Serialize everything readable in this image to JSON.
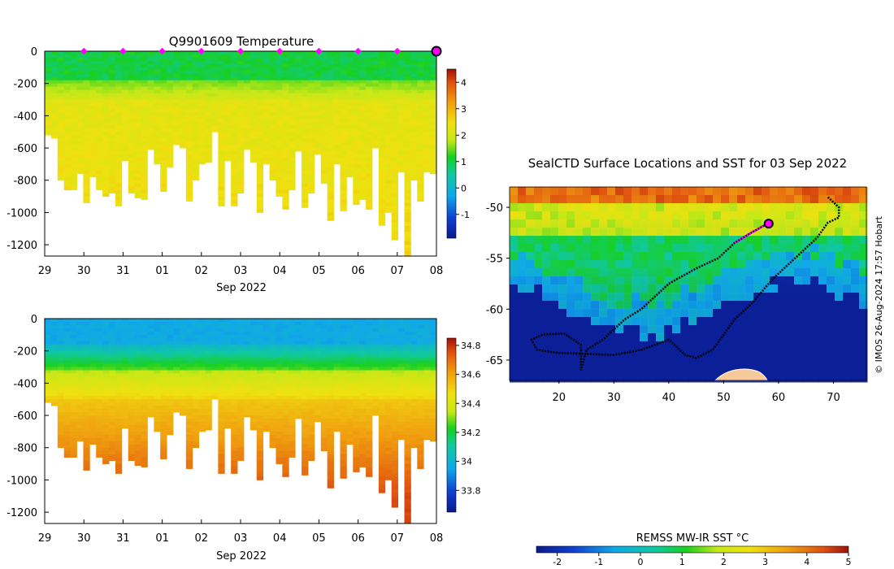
{
  "top_title": "Q9901609  Temperature",
  "map_title": "SealCTD Surface Locations and SST for 03 Sep 2022",
  "copyright": "© IMOS 26-Aug-2024 17:57 Hobart",
  "colors": {
    "profile_marker": "#ff00ff",
    "track": "#000000",
    "land": "#f7c99a",
    "ocean_cold": "#0a1fa0"
  },
  "chart_data": [
    {
      "id": "temperature",
      "type": "heatmap",
      "title": "Q9901609  Temperature",
      "xlabel": "Sep 2022",
      "x_ticks": [
        "29",
        "30",
        "31",
        "01",
        "02",
        "03",
        "04",
        "05",
        "06",
        "07",
        "08"
      ],
      "y_ticks": [
        "0",
        "-200",
        "-400",
        "-600",
        "-800",
        "-1000",
        "-1200"
      ],
      "ylim": [
        -1270,
        0
      ],
      "xlim": [
        0,
        10
      ],
      "colorbar": {
        "ticks": [
          "4",
          "3",
          "2",
          "1",
          "0",
          "-1"
        ],
        "range": [
          -1.9,
          4.5
        ]
      },
      "profile_markers_x": [
        1,
        2,
        3,
        4,
        5,
        6,
        7,
        8,
        9,
        10
      ],
      "profile_max_depths": [
        520,
        540,
        800,
        860,
        860,
        760,
        940,
        780,
        860,
        900,
        880,
        960,
        680,
        880,
        910,
        920,
        610,
        700,
        870,
        720,
        580,
        600,
        930,
        800,
        700,
        690,
        500,
        960,
        680,
        960,
        880,
        610,
        690,
        1000,
        700,
        800,
        900,
        980,
        860,
        620,
        970,
        880,
        640,
        820,
        1050,
        700,
        990,
        780,
        950,
        920,
        980,
        600,
        1080,
        1000,
        1170,
        750,
        1270,
        800,
        930,
        750,
        760
      ]
    },
    {
      "id": "salinity",
      "type": "heatmap",
      "xlabel": "Sep 2022",
      "x_ticks": [
        "29",
        "30",
        "31",
        "01",
        "02",
        "03",
        "04",
        "05",
        "06",
        "07",
        "08"
      ],
      "y_ticks": [
        "0",
        "-200",
        "-400",
        "-600",
        "-800",
        "-1000",
        "-1200"
      ],
      "ylim": [
        -1270,
        0
      ],
      "xlim": [
        0,
        10
      ],
      "colorbar": {
        "ticks": [
          "34.8",
          "34.6",
          "34.4",
          "34.2",
          "34",
          "33.8"
        ],
        "range": [
          33.65,
          34.85
        ]
      }
    },
    {
      "id": "sst_map",
      "type": "heatmap",
      "title": "SealCTD Surface Locations and SST for 03 Sep 2022",
      "x_ticks": [
        "20",
        "30",
        "40",
        "50",
        "60",
        "70"
      ],
      "y_ticks": [
        "-50",
        "-55",
        "-60",
        "-65"
      ],
      "xlim": [
        11,
        76
      ],
      "ylim": [
        -67,
        -48
      ],
      "colorbar": {
        "title": "REMSS MW-IR SST °C",
        "ticks": [
          "-2",
          "-1",
          "0",
          "1",
          "2",
          "3",
          "4",
          "5"
        ],
        "range": [
          -2.5,
          5
        ]
      },
      "track_lonlat": [
        [
          69,
          -49
        ],
        [
          71,
          -50
        ],
        [
          71,
          -51
        ],
        [
          69,
          -51.5
        ],
        [
          67,
          -53
        ],
        [
          63,
          -55
        ],
        [
          59,
          -57
        ],
        [
          55,
          -59.5
        ],
        [
          52,
          -61
        ],
        [
          48,
          -64
        ],
        [
          45,
          -64.8
        ],
        [
          43,
          -64.5
        ],
        [
          40,
          -63
        ],
        [
          35,
          -64
        ],
        [
          30,
          -64.5
        ],
        [
          25,
          -64.4
        ],
        [
          20,
          -64.3
        ],
        [
          16,
          -64
        ],
        [
          15,
          -63
        ],
        [
          17,
          -62.5
        ],
        [
          21,
          -62.4
        ],
        [
          24,
          -63.5
        ],
        [
          24,
          -65.5
        ],
        [
          24,
          -66
        ],
        [
          25,
          -64
        ],
        [
          28,
          -63
        ],
        [
          32,
          -61
        ],
        [
          35,
          -60
        ],
        [
          40,
          -57.5
        ],
        [
          45,
          -56
        ],
        [
          49,
          -55
        ],
        [
          52,
          -53.5
        ],
        [
          55,
          -52.5
        ],
        [
          58,
          -51.6
        ]
      ],
      "recent_track_lonlat": [
        [
          52,
          -53.5
        ],
        [
          55,
          -52.5
        ],
        [
          58,
          -51.6
        ]
      ],
      "current_position": [
        58.2,
        -51.6
      ]
    }
  ]
}
